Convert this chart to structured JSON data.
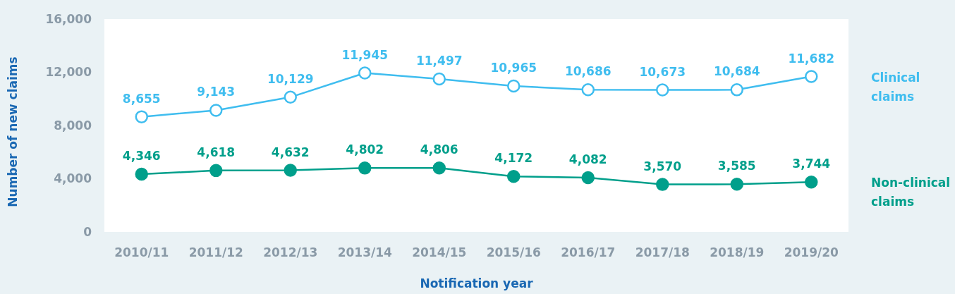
{
  "chart_data": {
    "type": "line",
    "xlabel": "Notification year",
    "ylabel": "Number of new claims",
    "categories": [
      "2010/11",
      "2011/12",
      "2012/13",
      "2013/14",
      "2014/15",
      "2015/16",
      "2016/17",
      "2017/18",
      "2018/19",
      "2019/20"
    ],
    "series": [
      {
        "name": "Clinical claims",
        "color": "#3fbdef",
        "values": [
          8655,
          9143,
          10129,
          11945,
          11497,
          10965,
          10686,
          10673,
          10684,
          11682
        ],
        "value_labels": [
          "8,655",
          "9,143",
          "10,129",
          "11,945",
          "11,497",
          "10,965",
          "10,686",
          "10,673",
          "10,684",
          "11,682"
        ]
      },
      {
        "name": "Non-clinical claims",
        "color": "#009f8b",
        "values": [
          4346,
          4618,
          4632,
          4802,
          4806,
          4172,
          4082,
          3570,
          3585,
          3744
        ],
        "value_labels": [
          "4,346",
          "4,618",
          "4,632",
          "4,802",
          "4,806",
          "4,172",
          "4,082",
          "3,570",
          "3,585",
          "3,744"
        ]
      }
    ],
    "ylim": [
      0,
      16000
    ],
    "yticks": [
      0,
      {
        "value": 4000,
        "label": "4,000"
      },
      {
        "value": 8000,
        "label": "8,000"
      },
      {
        "value": 12000,
        "label": "12,000"
      },
      {
        "value": 16000,
        "label": "16,000"
      }
    ],
    "marker": "circle"
  }
}
